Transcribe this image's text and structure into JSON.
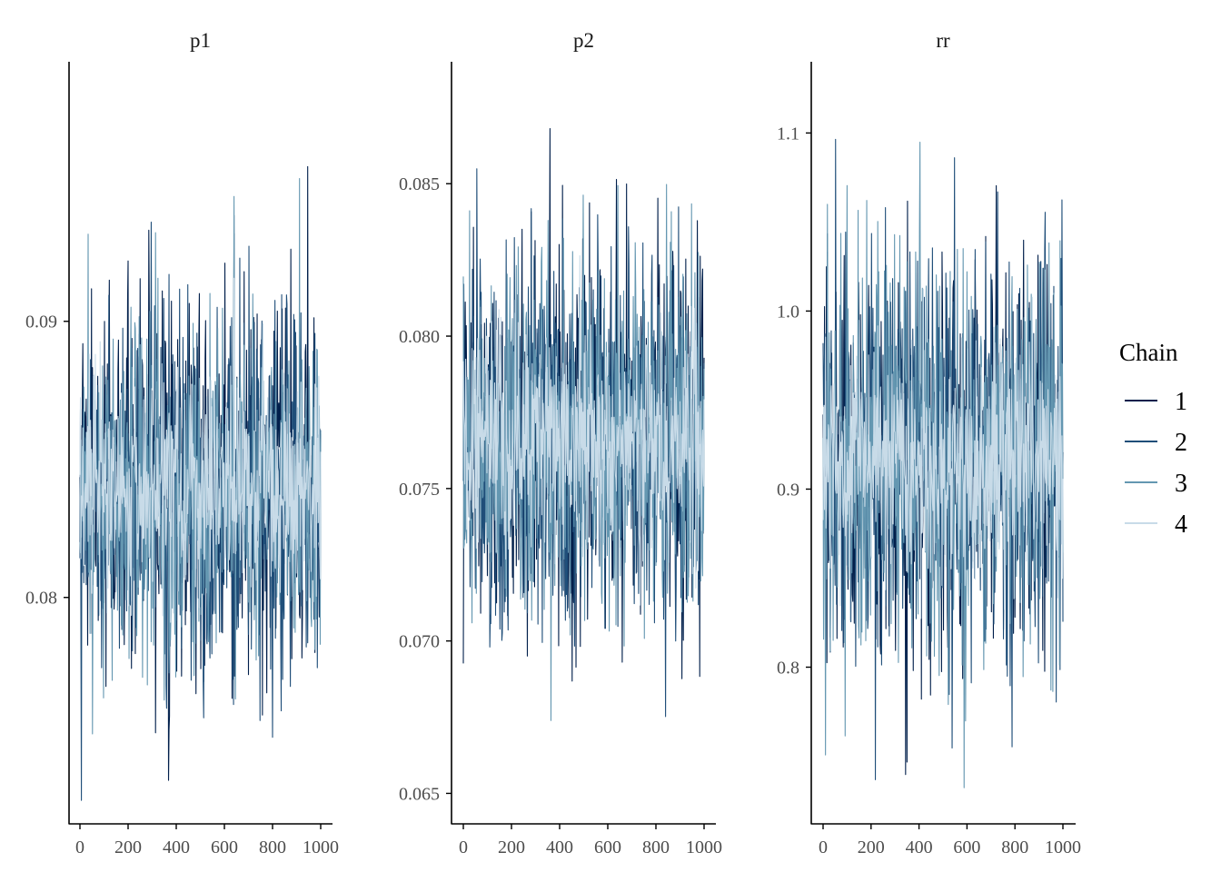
{
  "chart_data": {
    "type": "line",
    "x_ticks": [
      0,
      200,
      400,
      600,
      800,
      1000
    ],
    "x_range": [
      0,
      1000
    ],
    "iterations": 1000,
    "legend": {
      "title": "Chain",
      "placement": "right",
      "entries": [
        {
          "label": "1",
          "color": "#011f4b"
        },
        {
          "label": "2",
          "color": "#1f4e79"
        },
        {
          "label": "3",
          "color": "#6497b1"
        },
        {
          "label": "4",
          "color": "#c8dbe8"
        }
      ]
    },
    "panels": [
      {
        "title": "p1",
        "y_ticks": [
          "0.08",
          "0.09"
        ],
        "y_tick_values": [
          0.08,
          0.09
        ],
        "ylim": [
          0.0718,
          0.0994
        ],
        "center": 0.0838,
        "spread": 0.0032,
        "min": 0.0725,
        "max": 0.0976
      },
      {
        "title": "p2",
        "y_ticks": [
          "0.065",
          "0.070",
          "0.075",
          "0.080",
          "0.085"
        ],
        "y_tick_values": [
          0.065,
          0.07,
          0.075,
          0.08,
          0.085
        ],
        "ylim": [
          0.064,
          0.089
        ],
        "center": 0.0766,
        "spread": 0.003,
        "min": 0.0652,
        "max": 0.0885
      },
      {
        "title": "rr",
        "y_ticks": [
          "0.8",
          "0.9",
          "1.0",
          "1.1"
        ],
        "y_tick_values": [
          0.8,
          0.9,
          1.0,
          1.1
        ],
        "ylim": [
          0.712,
          1.14
        ],
        "center": 0.915,
        "spread": 0.055,
        "min": 0.731,
        "max": 1.121
      }
    ]
  }
}
